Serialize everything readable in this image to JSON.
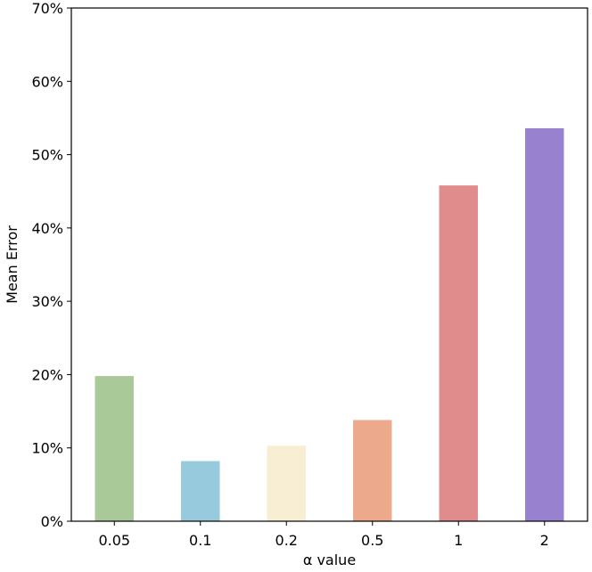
{
  "chart_data": {
    "type": "bar",
    "title": "",
    "xlabel": "α value",
    "ylabel": "Mean Error",
    "categories": [
      "0.05",
      "0.1",
      "0.2",
      "0.5",
      "1",
      "2"
    ],
    "values": [
      19.8,
      8.2,
      10.3,
      13.8,
      45.8,
      53.6
    ],
    "colors": [
      "#aac999",
      "#97cadd",
      "#f8eed3",
      "#eda98b",
      "#e08c8c",
      "#9881ce"
    ],
    "ylim": [
      0,
      70
    ],
    "yticks": [
      0,
      10,
      20,
      30,
      40,
      50,
      60,
      70
    ],
    "ytick_labels": [
      "0%",
      "10%",
      "20%",
      "30%",
      "40%",
      "50%",
      "60%",
      "70%"
    ],
    "grid": false,
    "value_format": "percent"
  }
}
